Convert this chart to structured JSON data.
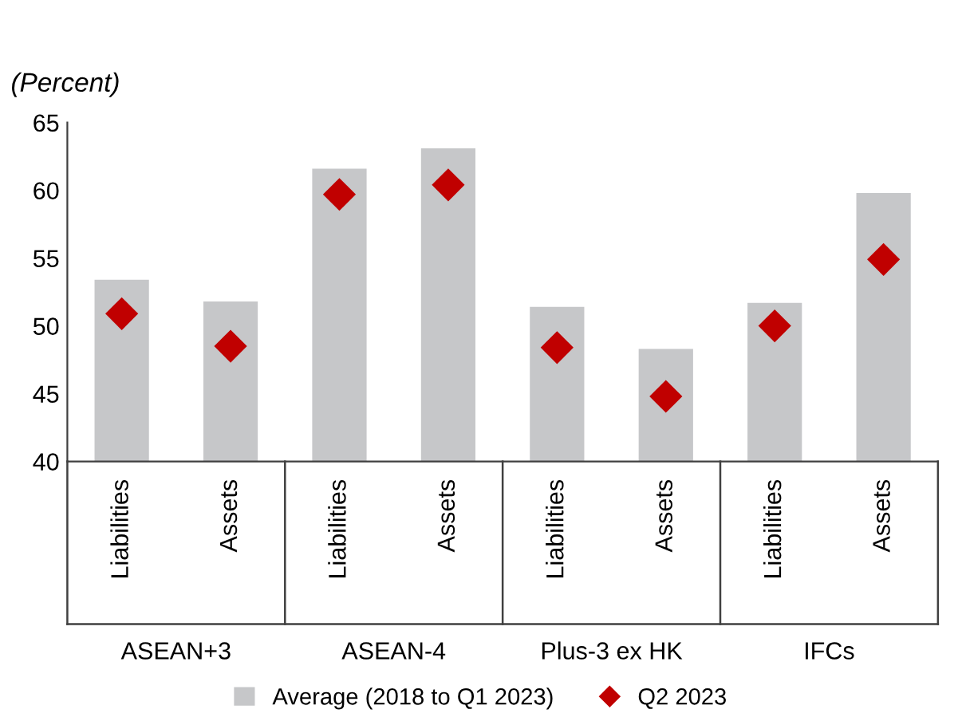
{
  "chart_data": {
    "type": "bar",
    "title": "(Percent)",
    "categories": [
      "Liabilities",
      "Assets",
      "Liabilities",
      "Assets",
      "Liabilities",
      "Assets",
      "Liabilities",
      "Assets"
    ],
    "series": [
      {
        "name": "Average (2018 to Q1 2023)",
        "color": "#c6c7c9",
        "values": [
          53.4,
          51.8,
          61.6,
          63.1,
          51.4,
          48.3,
          51.7,
          59.8
        ]
      },
      {
        "name": "Q2 2023",
        "type": "scatter",
        "color": "#c00000",
        "marker": "diamond",
        "values": [
          50.9,
          48.5,
          59.7,
          60.4,
          48.4,
          44.8,
          50.0,
          54.9
        ]
      }
    ],
    "annotations": [
      "ASEAN+3",
      "ASEAN-4",
      "Plus-3 ex HK",
      "IFCs"
    ],
    "ylim": [
      40,
      65
    ],
    "yticks": [
      40,
      45,
      50,
      55,
      60,
      65
    ],
    "grid": false,
    "legend": "bottom"
  }
}
